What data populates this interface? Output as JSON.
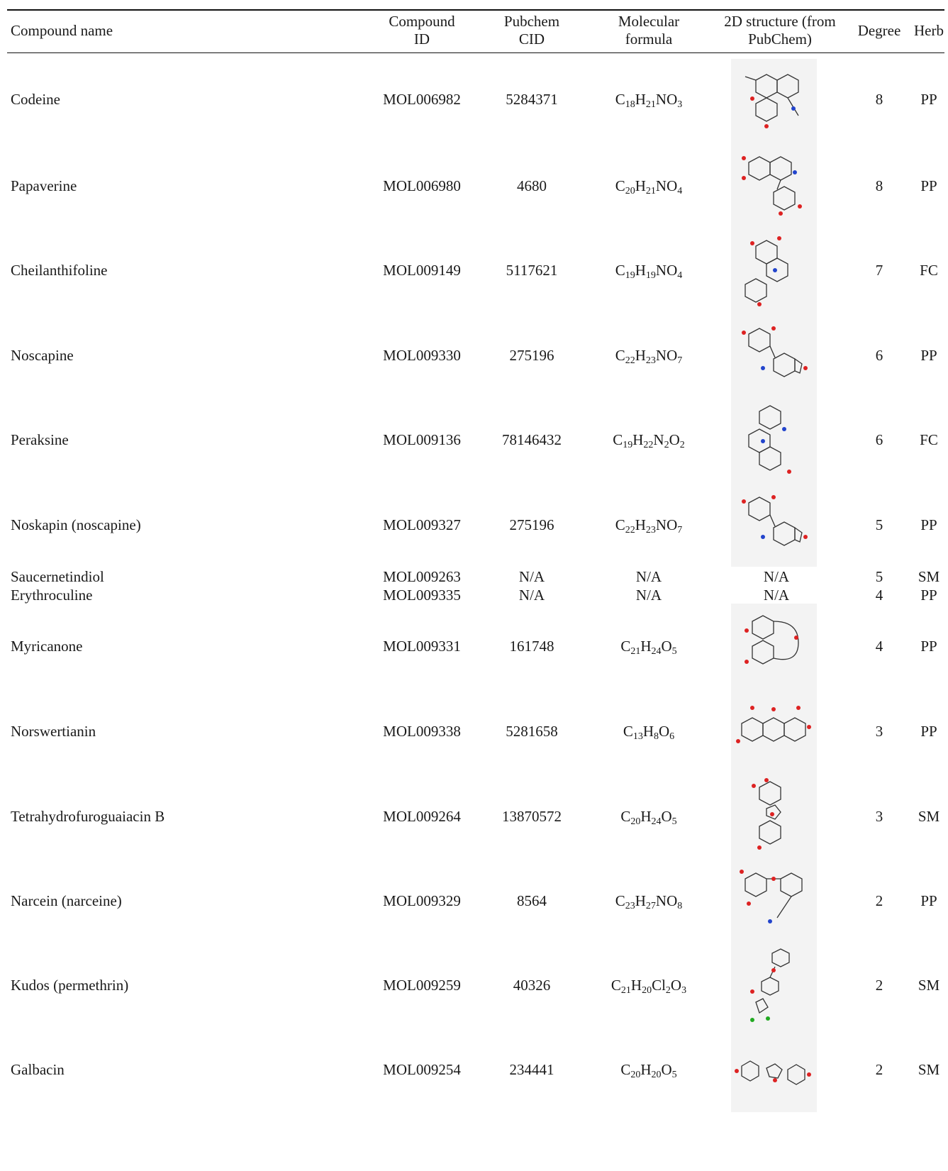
{
  "headers": {
    "name": "Compound name",
    "id": [
      "Compound",
      "ID"
    ],
    "cid": [
      "Pubchem",
      "CID"
    ],
    "formula": [
      "Molecular",
      "formula"
    ],
    "structure": [
      "2D structure (from",
      "PubChem)"
    ],
    "degree": "Degree",
    "herb": "Herb"
  },
  "rows": [
    {
      "name": "Codeine",
      "id": "MOL006982",
      "cid": "5284371",
      "formula": [
        [
          "C",
          "18"
        ],
        [
          "H",
          "21"
        ],
        [
          "N",
          ""
        ],
        [
          "O",
          "3"
        ]
      ],
      "degree": "8",
      "herb": "PP",
      "structure": "image"
    },
    {
      "name": "Papaverine",
      "id": "MOL006980",
      "cid": "4680",
      "formula": [
        [
          "C",
          "20"
        ],
        [
          "H",
          "21"
        ],
        [
          "N",
          ""
        ],
        [
          "O",
          "4"
        ]
      ],
      "degree": "8",
      "herb": "PP",
      "structure": "image"
    },
    {
      "name": "Cheilanthifoline",
      "id": "MOL009149",
      "cid": "5117621",
      "formula": [
        [
          "C",
          "19"
        ],
        [
          "H",
          "19"
        ],
        [
          "N",
          ""
        ],
        [
          "O",
          "4"
        ]
      ],
      "degree": "7",
      "herb": "FC",
      "structure": "image"
    },
    {
      "name": "Noscapine",
      "id": "MOL009330",
      "cid": "275196",
      "formula": [
        [
          "C",
          "22"
        ],
        [
          "H",
          "23"
        ],
        [
          "N",
          ""
        ],
        [
          "O",
          "7"
        ]
      ],
      "degree": "6",
      "herb": "PP",
      "structure": "image"
    },
    {
      "name": "Peraksine",
      "id": "MOL009136",
      "cid": "78146432",
      "formula": [
        [
          "C",
          "19"
        ],
        [
          "H",
          "22"
        ],
        [
          "N",
          "2"
        ],
        [
          "O",
          "2"
        ]
      ],
      "degree": "6",
      "herb": "FC",
      "structure": "image"
    },
    {
      "name": "Noskapin (noscapine)",
      "id": "MOL009327",
      "cid": "275196",
      "formula": [
        [
          "C",
          "22"
        ],
        [
          "H",
          "23"
        ],
        [
          "N",
          ""
        ],
        [
          "O",
          "7"
        ]
      ],
      "degree": "5",
      "herb": "PP",
      "structure": "image"
    },
    {
      "name": "Saucernetindiol",
      "id": "MOL009263",
      "cid": "N/A",
      "formula_text": "N/A",
      "degree": "5",
      "herb": "SM",
      "structure_text": "N/A"
    },
    {
      "name": "Erythroculine",
      "id": "MOL009335",
      "cid": "N/A",
      "formula_text": "N/A",
      "degree": "4",
      "herb": "PP",
      "structure_text": "N/A"
    },
    {
      "name": "Myricanone",
      "id": "MOL009331",
      "cid": "161748",
      "formula": [
        [
          "C",
          "21"
        ],
        [
          "H",
          "24"
        ],
        [
          "O",
          "5"
        ]
      ],
      "degree": "4",
      "herb": "PP",
      "structure": "image"
    },
    {
      "name": "Norswertianin",
      "id": "MOL009338",
      "cid": "5281658",
      "formula": [
        [
          "C",
          "13"
        ],
        [
          "H",
          "8"
        ],
        [
          "O",
          "6"
        ]
      ],
      "degree": "3",
      "herb": "PP",
      "structure": "image"
    },
    {
      "name": "Tetrahydrofuroguaiacin B",
      "id": "MOL009264",
      "cid": "13870572",
      "formula": [
        [
          "C",
          "20"
        ],
        [
          "H",
          "24"
        ],
        [
          "O",
          "5"
        ]
      ],
      "degree": "3",
      "herb": "SM",
      "structure": "image"
    },
    {
      "name": "Narcein (narceine)",
      "id": "MOL009329",
      "cid": "8564",
      "formula": [
        [
          "C",
          "23"
        ],
        [
          "H",
          "27"
        ],
        [
          "N",
          ""
        ],
        [
          "O",
          "8"
        ]
      ],
      "degree": "2",
      "herb": "PP",
      "structure": "image"
    },
    {
      "name": "Kudos (permethrin)",
      "id": "MOL009259",
      "cid": "40326",
      "formula": [
        [
          "C",
          "21"
        ],
        [
          "H",
          "20"
        ],
        [
          "Cl",
          "2"
        ],
        [
          "O",
          "3"
        ]
      ],
      "degree": "2",
      "herb": "SM",
      "structure": "image"
    },
    {
      "name": "Galbacin",
      "id": "MOL009254",
      "cid": "234441",
      "formula": [
        [
          "C",
          "20"
        ],
        [
          "H",
          "20"
        ],
        [
          "O",
          "5"
        ]
      ],
      "degree": "2",
      "herb": "SM",
      "structure": "image"
    }
  ]
}
